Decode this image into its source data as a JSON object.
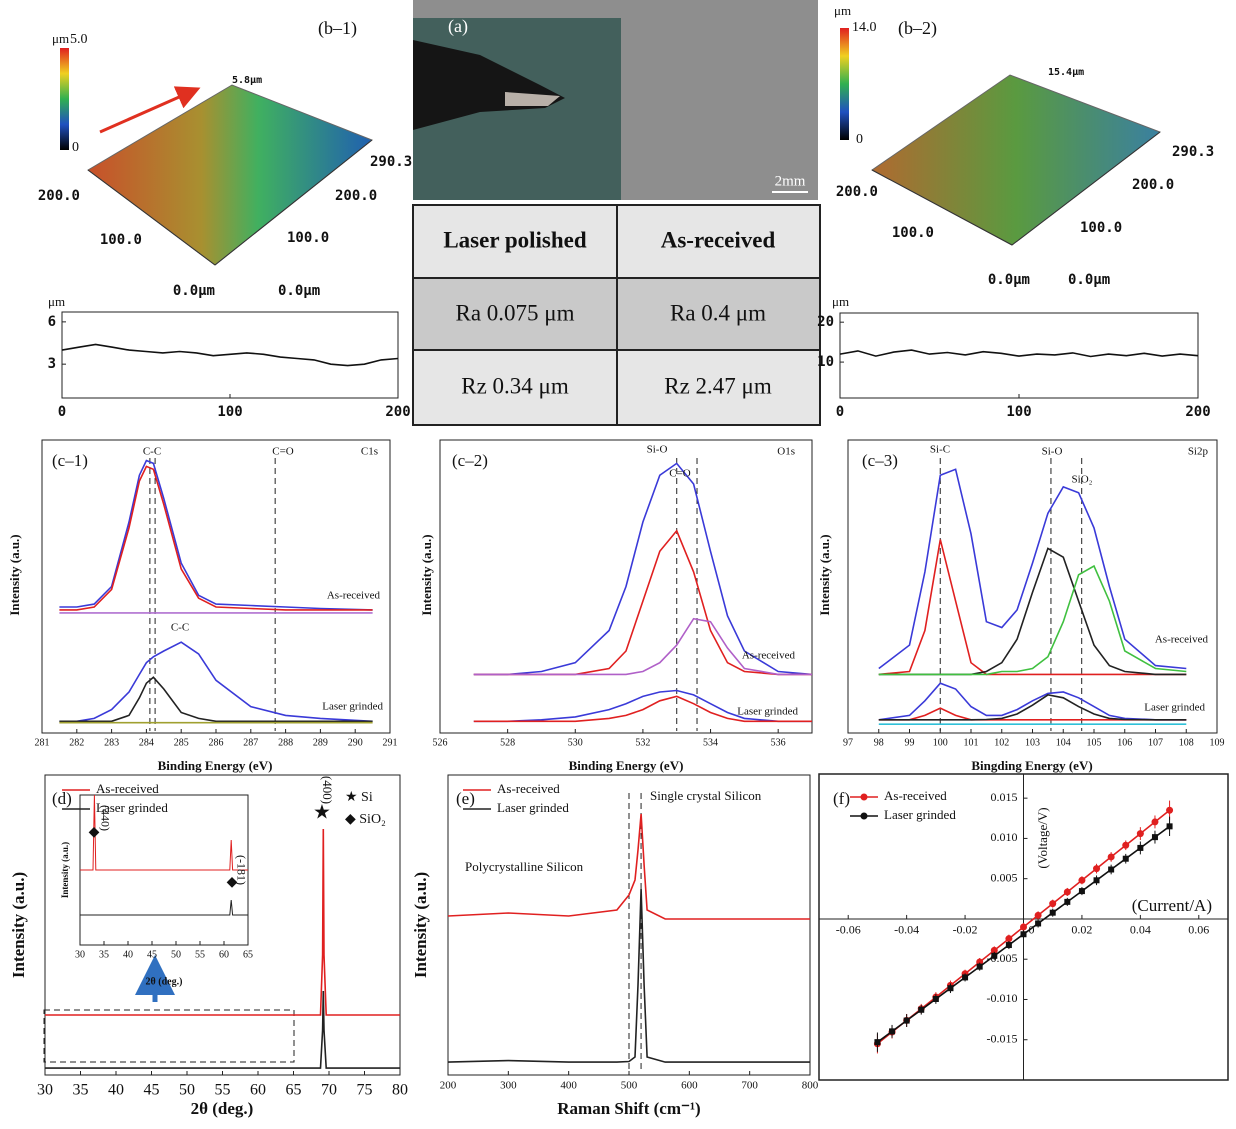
{
  "figure": {
    "surface_b1": {
      "panel": "(b–1)",
      "unit": "μm",
      "scale_max": "5.0",
      "scale_min": "0",
      "top": "5.8μm",
      "right": [
        "290.3",
        "200.0",
        "100.0",
        "0.0μm"
      ],
      "left": [
        "200.0",
        "100.0",
        "0.0μm"
      ]
    },
    "photo": {
      "panel": "(a)",
      "scale": "2mm"
    },
    "table": {
      "header": [
        "Laser polished",
        "As-received"
      ],
      "rows": [
        [
          "Ra 0.075 μm",
          "Ra 0.4 μm"
        ],
        [
          "Rz 0.34 μm",
          "Rz 2.47 μm"
        ]
      ]
    },
    "surface_b2": {
      "panel": "(b–2)",
      "unit": "μm",
      "scale_max": "14.0",
      "scale_min": "0",
      "top": "15.4μm",
      "right": [
        "290.3",
        "200.0",
        "100.0",
        "0.0μm"
      ],
      "left": [
        "200.0",
        "100.0",
        "0.0μm"
      ]
    }
  },
  "chart_data": [
    {
      "type": "line",
      "ylabel": "μm",
      "x": [
        0,
        10,
        20,
        30,
        40,
        50,
        60,
        70,
        80,
        90,
        100,
        110,
        120,
        130,
        140,
        150,
        160,
        170,
        180,
        190,
        200
      ],
      "series": [
        {
          "color": "#111111",
          "values": [
            4.0,
            4.2,
            4.4,
            4.2,
            4.0,
            3.9,
            3.8,
            3.9,
            3.8,
            3.6,
            3.7,
            3.8,
            3.7,
            3.5,
            3.4,
            3.3,
            3.0,
            2.9,
            3.0,
            3.3,
            3.4
          ]
        }
      ],
      "xlim": [
        0,
        200
      ],
      "ylim": [
        0.6,
        6.7
      ],
      "xticks": [
        0,
        100,
        200
      ],
      "yticks": [
        3,
        6
      ]
    },
    {
      "type": "line",
      "ylabel": "μm",
      "x": [
        0,
        10,
        20,
        30,
        40,
        50,
        60,
        70,
        80,
        90,
        100,
        110,
        120,
        130,
        140,
        150,
        160,
        170,
        180,
        190,
        200
      ],
      "series": [
        {
          "color": "#111111",
          "values": [
            12,
            12.8,
            11.5,
            12.5,
            13,
            12,
            12.4,
            11.8,
            12.6,
            12.2,
            11.5,
            12,
            11.8,
            12.3,
            11.4,
            12,
            11.6,
            12.2,
            11.5,
            12,
            11.6
          ]
        }
      ],
      "xlim": [
        0,
        200
      ],
      "ylim": [
        1,
        22.3
      ],
      "xticks": [
        0,
        100,
        200
      ],
      "yticks": [
        10,
        20
      ]
    },
    {
      "type": "line",
      "panel": "(c–1)",
      "xlabel": "Binding Energy (eV)",
      "ylabel": "Intensity (a.u.)",
      "x": [
        281.5,
        282,
        282.5,
        283,
        283.5,
        283.8,
        284,
        284.2,
        284.5,
        285,
        285.5,
        286,
        287,
        288,
        289,
        290.5
      ],
      "series": [
        {
          "color": "#3a3ad8",
          "values": [
            43,
            43,
            44,
            50,
            72,
            88,
            93,
            92,
            80,
            58,
            47,
            44,
            43.5,
            43,
            42.5,
            42
          ]
        },
        {
          "color": "#e02020",
          "values": [
            42,
            42,
            43,
            49,
            70,
            86,
            91,
            90,
            78,
            56,
            46,
            43,
            42.5,
            42,
            42,
            42
          ]
        },
        {
          "color": "#b070d0",
          "values": [
            41,
            41,
            41,
            41,
            41,
            41,
            41,
            41,
            41,
            41,
            41,
            41,
            41,
            41,
            41,
            41
          ]
        },
        {
          "color": "#3a3ad8",
          "values": [
            4,
            4,
            5,
            8,
            14,
            20,
            24,
            26,
            28,
            31,
            27,
            18,
            9,
            6,
            5,
            4
          ]
        },
        {
          "color": "#222222",
          "values": [
            4,
            4,
            4,
            4,
            6,
            12,
            17,
            19,
            15,
            7,
            5,
            4,
            4,
            4,
            4,
            4
          ]
        },
        {
          "color": "#a0a030",
          "values": [
            3.5,
            3.5,
            3.5,
            3.5,
            3.5,
            3.5,
            3.5,
            3.5,
            3.5,
            3.5,
            3.5,
            3.5,
            3.5,
            3.5,
            3.5,
            3.5
          ]
        }
      ],
      "vlines": [
        284.1,
        287.7,
        284.25
      ],
      "annotations": [
        "C-C",
        "C=O",
        "C1s",
        "As-received",
        "C-C",
        "Laser grinded"
      ],
      "xlim": [
        281,
        291
      ],
      "ylim": [
        0,
        100
      ],
      "xticks": [
        281,
        282,
        283,
        284,
        285,
        286,
        287,
        288,
        289,
        290,
        291
      ]
    },
    {
      "type": "line",
      "panel": "(c–2)",
      "xlabel": "Binding Energy (eV)",
      "ylabel": "Intensity (a.u.)",
      "x": [
        527,
        528,
        529,
        530,
        531,
        531.5,
        532,
        532.5,
        533,
        533.5,
        534,
        534.5,
        535,
        536,
        537
      ],
      "series": [
        {
          "color": "#3a3ad8",
          "values": [
            20,
            20,
            21,
            24,
            35,
            50,
            72,
            88,
            92,
            85,
            62,
            40,
            28,
            21,
            20
          ]
        },
        {
          "color": "#e02020",
          "values": [
            20,
            20,
            20,
            20,
            22,
            28,
            45,
            62,
            69,
            55,
            35,
            24,
            21,
            20,
            20
          ]
        },
        {
          "color": "#b060c8",
          "values": [
            20,
            20,
            20,
            20,
            20,
            20,
            21,
            24,
            30,
            39,
            38,
            29,
            22,
            20,
            20
          ]
        },
        {
          "color": "#3a3ad8",
          "values": [
            4,
            4,
            4.5,
            5.5,
            8,
            10,
            12.5,
            14,
            14.5,
            13,
            10,
            7,
            5,
            4,
            4
          ]
        },
        {
          "color": "#e02020",
          "values": [
            4,
            4,
            4,
            4,
            5,
            6,
            8,
            11,
            12.5,
            10,
            7,
            5,
            4,
            4,
            4
          ]
        }
      ],
      "vlines": [
        533.0,
        533.6
      ],
      "annotations": [
        "Si-O",
        "C=O",
        "O1s",
        "As-received",
        "Laser grinded"
      ],
      "xlim": [
        526,
        537
      ],
      "ylim": [
        0,
        100
      ],
      "xticks": [
        526,
        528,
        530,
        532,
        534,
        536
      ]
    },
    {
      "type": "line",
      "panel": "(c–3)",
      "xlabel": "Bingding Energy (eV)",
      "ylabel": "Intensity (a.u.)",
      "x": [
        98,
        99,
        99.5,
        100,
        100.5,
        101,
        101.5,
        102,
        102.5,
        103,
        103.5,
        104,
        104.5,
        105,
        105.5,
        106,
        107,
        108
      ],
      "series": [
        {
          "color": "#3a3ad8",
          "values": [
            22,
            30,
            55,
            88,
            90,
            68,
            38,
            36,
            42,
            58,
            75,
            84,
            82,
            70,
            50,
            32,
            23,
            22
          ]
        },
        {
          "color": "#e02020",
          "values": [
            20,
            21,
            35,
            66,
            45,
            24,
            20,
            20,
            20,
            20,
            20,
            20,
            20,
            20,
            20,
            20,
            20,
            20
          ]
        },
        {
          "color": "#222222",
          "values": [
            20,
            20,
            20,
            20,
            20,
            20,
            21,
            24,
            32,
            48,
            63,
            60,
            45,
            30,
            23,
            21,
            20,
            20
          ]
        },
        {
          "color": "#40c040",
          "values": [
            20,
            20,
            20,
            20,
            20,
            20,
            20,
            21,
            21,
            22,
            26,
            38,
            54,
            57,
            45,
            28,
            22,
            21
          ]
        },
        {
          "color": "#3a3ad8",
          "values": [
            4.5,
            6,
            11,
            17,
            15,
            9,
            6,
            6,
            8,
            11,
            13.5,
            14,
            12,
            9,
            6,
            5,
            4.5,
            4.5
          ]
        },
        {
          "color": "#e02020",
          "values": [
            4.5,
            4.5,
            6,
            8.5,
            6,
            4.5,
            4.5,
            4.5,
            4.5,
            4.5,
            4.5,
            4.5,
            4.5,
            4.5,
            4.5,
            4.5,
            4.5,
            4.5
          ]
        },
        {
          "color": "#222222",
          "values": [
            4.5,
            4.5,
            4.5,
            4.5,
            4.5,
            4.5,
            4.6,
            5,
            6.5,
            9.5,
            13,
            12,
            9,
            6.5,
            5,
            4.6,
            4.5,
            4.5
          ]
        },
        {
          "color": "#30c0d8",
          "values": [
            3,
            3,
            3,
            3,
            3,
            3,
            3,
            3,
            3,
            3,
            3,
            3,
            3,
            3,
            3,
            3,
            3,
            3
          ]
        }
      ],
      "vlines": [
        100,
        103.6,
        104.6
      ],
      "annotations": [
        "Si-C",
        "Si-O",
        "SiO₂",
        "Si2p",
        "As-received",
        "Laser grinded"
      ],
      "xlim": [
        97,
        109
      ],
      "ylim": [
        0,
        100
      ],
      "xticks": [
        97,
        98,
        99,
        100,
        101,
        102,
        103,
        104,
        105,
        106,
        107,
        108,
        109
      ]
    },
    {
      "type": "line",
      "panel": "(d)",
      "xlabel": "2θ (deg.)",
      "ylabel": "Intensity (a.u.)",
      "x": [
        30,
        65,
        68.8,
        69.1,
        69.2,
        69.3,
        69.6,
        80
      ],
      "series": [
        {
          "name": "As-received",
          "color": "#e02020",
          "values": [
            20,
            20,
            20,
            40,
            82,
            40,
            20,
            20
          ]
        },
        {
          "name": "Laser grinded",
          "color": "#222222",
          "values": [
            2.3,
            2.3,
            2.3,
            15,
            28,
            15,
            2.3,
            2.3
          ]
        }
      ],
      "annotations": [
        "★",
        "(400)",
        "★ Si",
        "◆ SiO₂"
      ],
      "xlim": [
        30,
        80
      ],
      "ylim": [
        0,
        100
      ],
      "xticks": [
        30,
        35,
        40,
        45,
        50,
        55,
        60,
        65,
        70,
        75,
        80
      ]
    },
    {
      "type": "line",
      "xlabel": "2θ (deg.)",
      "ylabel": "Intensity (a.u.)",
      "x": [
        30,
        32.7,
        33,
        33.3,
        61.2,
        61.5,
        61.8,
        65
      ],
      "series": [
        {
          "color": "#e02020",
          "values": [
            50,
            50,
            100,
            50,
            50,
            70,
            50,
            50
          ]
        },
        {
          "color": "#222222",
          "values": [
            20,
            20,
            20,
            20,
            20,
            30,
            20,
            20
          ]
        }
      ],
      "annotations": [
        "◆",
        "(440)",
        "◆",
        "(-181)"
      ],
      "xlim": [
        30,
        65
      ],
      "ylim": [
        0,
        100
      ],
      "xticks": [
        30,
        35,
        40,
        45,
        50,
        55,
        60,
        65
      ]
    },
    {
      "type": "line",
      "panel": "(e)",
      "xlabel": "Raman Shift (cm⁻¹)",
      "ylabel": "Intensity (a.u.)",
      "x": [
        200,
        300,
        400,
        480,
        500,
        510,
        515,
        520,
        525,
        530,
        560,
        800
      ],
      "series": [
        {
          "name": "As-received",
          "color": "#e02020",
          "values": [
            53,
            54,
            53,
            55,
            60,
            65,
            75,
            87,
            70,
            55,
            52,
            52
          ]
        },
        {
          "name": "Laser grinded",
          "color": "#222222",
          "values": [
            4.3,
            4.8,
            4.3,
            4.3,
            4.5,
            6,
            30,
            62,
            30,
            6,
            4.3,
            4.3
          ]
        }
      ],
      "vlines": [
        500,
        520
      ],
      "annotations": [
        "Polycrystalline Silicon",
        "Single crystal Silicon"
      ],
      "xlim": [
        200,
        800
      ],
      "ylim": [
        0,
        100
      ],
      "xticks": [
        200,
        300,
        400,
        500,
        600,
        700,
        800
      ]
    },
    {
      "type": "line",
      "panel": "(f)",
      "xlabel": "(Current/A)",
      "ylabel": "(Voltage/V)",
      "x": [
        -0.05,
        -0.045,
        -0.04,
        -0.035,
        -0.03,
        -0.025,
        -0.02,
        -0.015,
        -0.01,
        -0.005,
        0,
        0.005,
        0.01,
        0.015,
        0.02,
        0.025,
        0.03,
        0.035,
        0.04,
        0.045,
        0.05
      ],
      "series": [
        {
          "name": "As-received",
          "color": "#e02020",
          "marker": "circle",
          "values": [
            -0.0155,
            -0.01405,
            -0.0126,
            -0.01115,
            -0.0097,
            -0.00825,
            -0.0068,
            -0.00535,
            -0.0039,
            -0.00245,
            -0.001,
            0.00045,
            0.0019,
            0.00335,
            0.0048,
            0.00625,
            0.0077,
            0.00915,
            0.0106,
            0.01205,
            0.0135
          ],
          "errors": [
            0.0012,
            0.0008,
            0.0008,
            0.0006,
            0.0006,
            0.0006,
            0.0005,
            0.0005,
            0.0005,
            0.0005,
            0.0005,
            0.0005,
            0.0005,
            0.0005,
            0.0005,
            0.0006,
            0.0006,
            0.0006,
            0.0008,
            0.0008,
            0.0012
          ]
        },
        {
          "name": "Laser grinded",
          "color": "#111111",
          "marker": "square",
          "values": [
            -0.0153,
            -0.01396,
            -0.01262,
            -0.01128,
            -0.00994,
            -0.0086,
            -0.00726,
            -0.00592,
            -0.00458,
            -0.00324,
            -0.0019,
            -0.00056,
            0.00078,
            0.00212,
            0.00346,
            0.0048,
            0.00614,
            0.00748,
            0.00882,
            0.01016,
            0.0115
          ],
          "errors": [
            0.0012,
            0.0008,
            0.0008,
            0.0006,
            0.0006,
            0.0006,
            0.0005,
            0.0005,
            0.0005,
            0.0005,
            0.0005,
            0.0005,
            0.0005,
            0.0005,
            0.0005,
            0.0006,
            0.0006,
            0.0006,
            0.0008,
            0.0008,
            0.0012
          ]
        }
      ],
      "xlim": [
        -0.07,
        0.07
      ],
      "ylim": [
        -0.02,
        0.018
      ],
      "xticks": [
        -0.06,
        -0.04,
        -0.02,
        0,
        0.02,
        0.04,
        0.06
      ],
      "yticks": [
        -0.015,
        {
          "value": -0.01,
          "label": "-0.010"
        },
        -0.005,
        0.005,
        {
          "value": 0.01,
          "label": "0.010"
        },
        0.015
      ]
    }
  ]
}
